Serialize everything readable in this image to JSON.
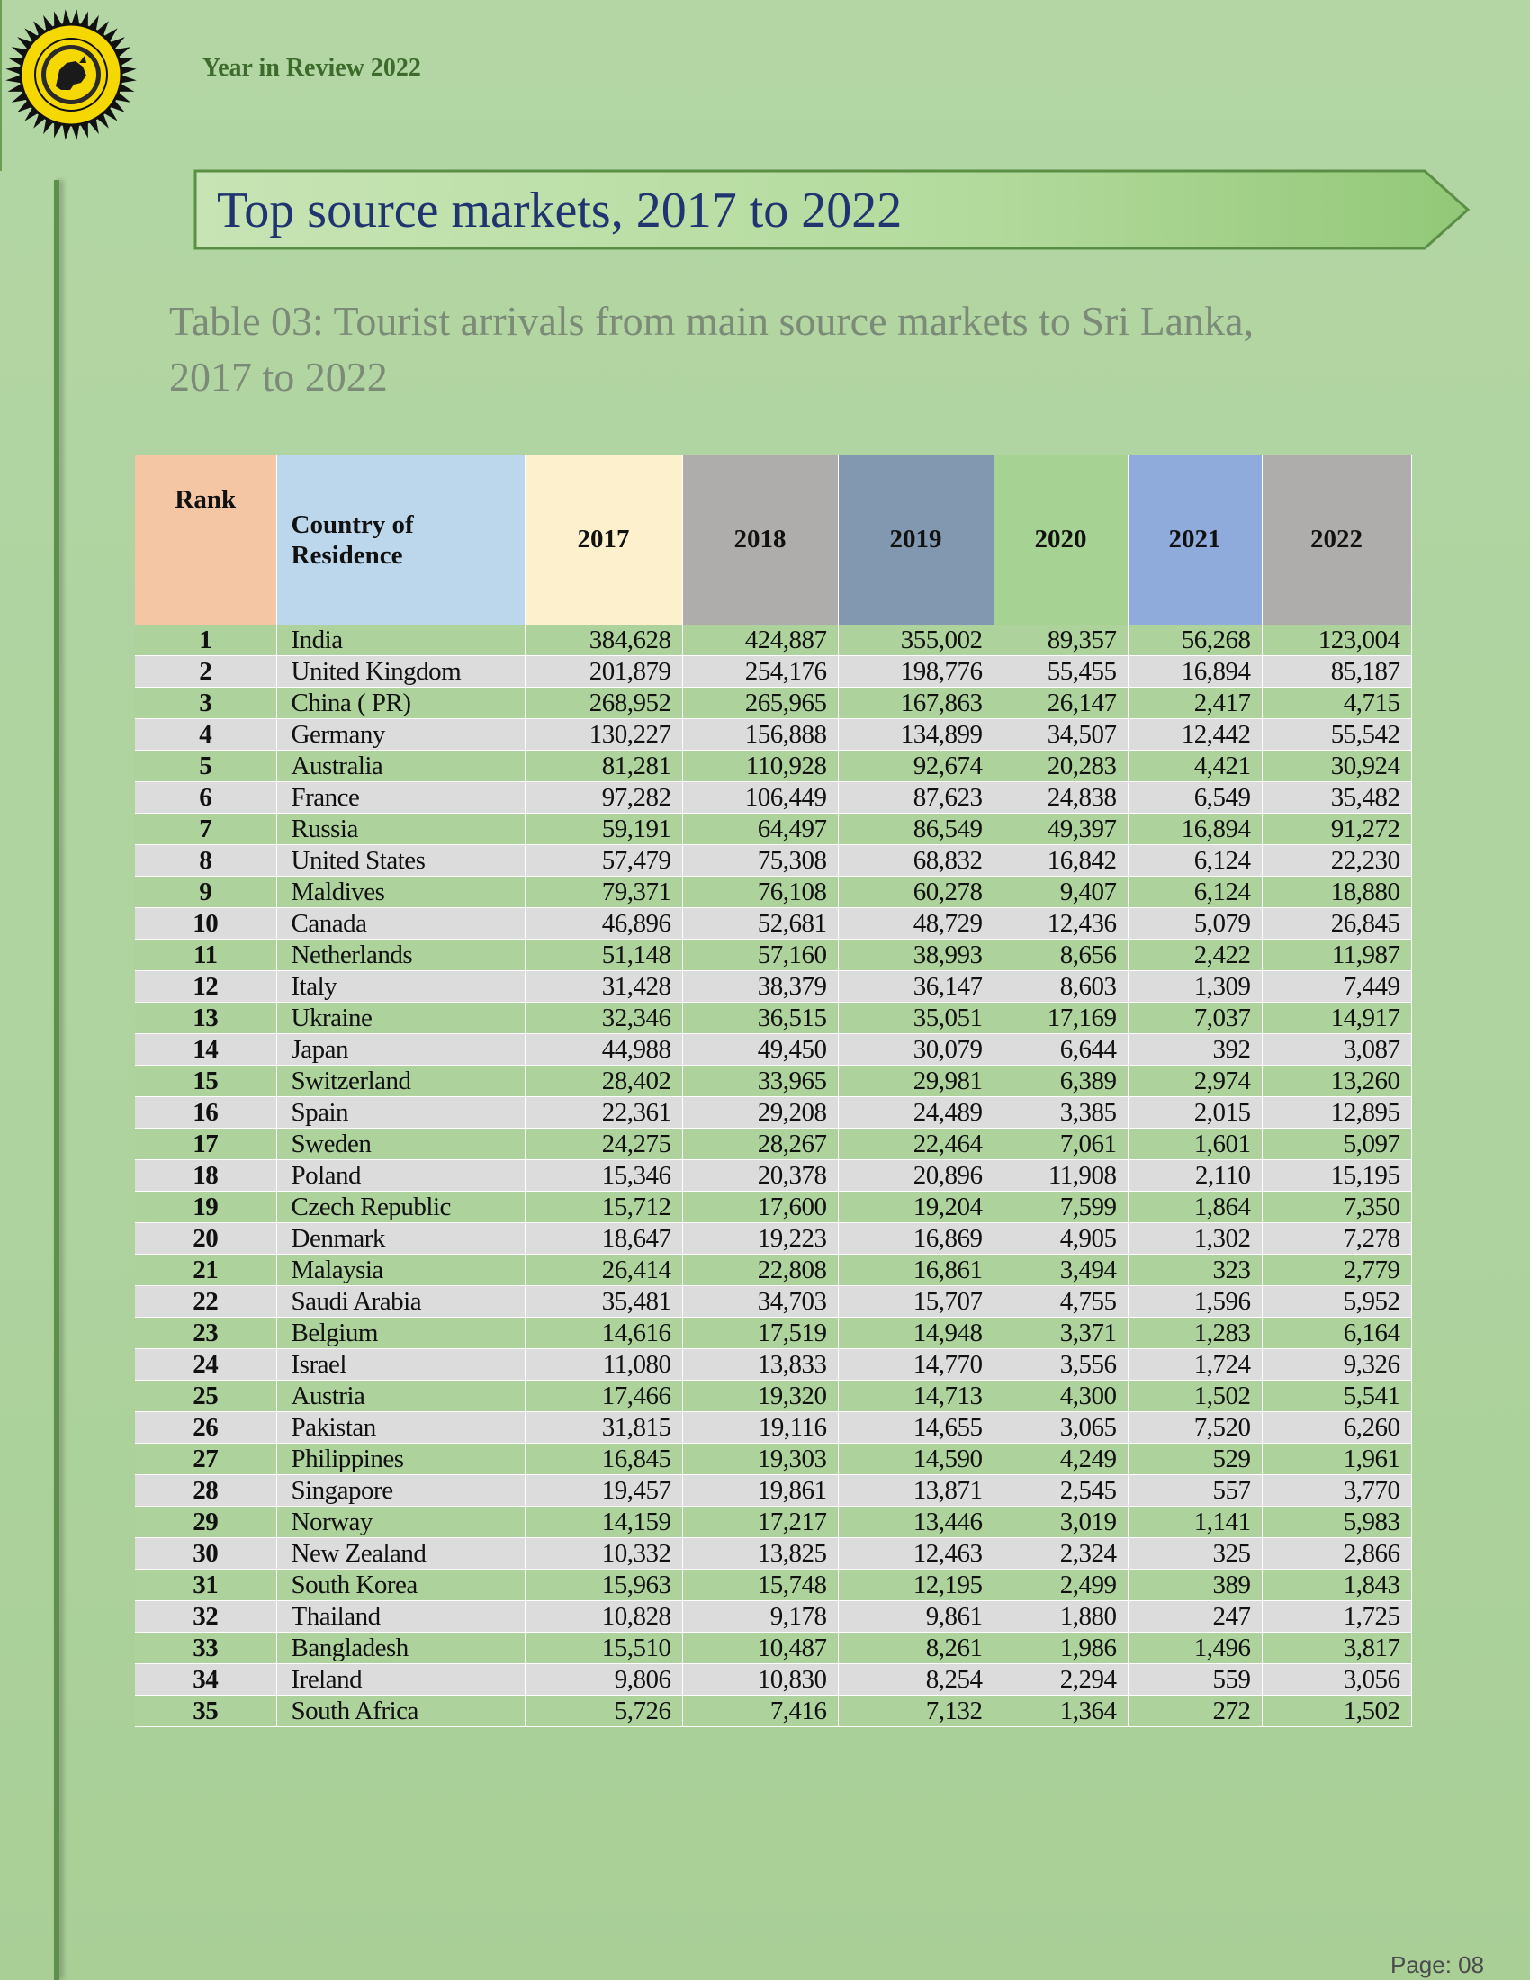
{
  "header": {
    "title": "Year in Review 2022"
  },
  "banner": {
    "title": "Top source markets, 2017 to 2022"
  },
  "caption": "Table 03: Tourist arrivals from main source markets to Sri Lanka, 2017 to 2022",
  "table": {
    "headers": {
      "rank": "Rank",
      "country_line1": "Country of",
      "country_line2": "Residence",
      "years": [
        "2017",
        "2018",
        "2019",
        "2020",
        "2021",
        "2022"
      ]
    },
    "rows": [
      {
        "rank": "1",
        "country": "India",
        "v": [
          "384,628",
          "424,887",
          "355,002",
          "89,357",
          "56,268",
          "123,004"
        ]
      },
      {
        "rank": "2",
        "country": "United Kingdom",
        "v": [
          "201,879",
          "254,176",
          "198,776",
          "55,455",
          "16,894",
          "85,187"
        ]
      },
      {
        "rank": "3",
        "country": "China ( PR)",
        "v": [
          "268,952",
          "265,965",
          "167,863",
          "26,147",
          "2,417",
          "4,715"
        ]
      },
      {
        "rank": "4",
        "country": "Germany",
        "v": [
          "130,227",
          "156,888",
          "134,899",
          "34,507",
          "12,442",
          "55,542"
        ]
      },
      {
        "rank": "5",
        "country": "Australia",
        "v": [
          "81,281",
          "110,928",
          "92,674",
          "20,283",
          "4,421",
          "30,924"
        ]
      },
      {
        "rank": "6",
        "country": "France",
        "v": [
          "97,282",
          "106,449",
          "87,623",
          "24,838",
          "6,549",
          "35,482"
        ]
      },
      {
        "rank": "7",
        "country": "Russia",
        "v": [
          "59,191",
          "64,497",
          "86,549",
          "49,397",
          "16,894",
          "91,272"
        ]
      },
      {
        "rank": "8",
        "country": "United States",
        "v": [
          "57,479",
          "75,308",
          "68,832",
          "16,842",
          "6,124",
          "22,230"
        ]
      },
      {
        "rank": "9",
        "country": "Maldives",
        "v": [
          "79,371",
          "76,108",
          "60,278",
          "9,407",
          "6,124",
          "18,880"
        ]
      },
      {
        "rank": "10",
        "country": "Canada",
        "v": [
          "46,896",
          "52,681",
          "48,729",
          "12,436",
          "5,079",
          "26,845"
        ]
      },
      {
        "rank": "11",
        "country": "Netherlands",
        "v": [
          "51,148",
          "57,160",
          "38,993",
          "8,656",
          "2,422",
          "11,987"
        ]
      },
      {
        "rank": "12",
        "country": "Italy",
        "v": [
          "31,428",
          "38,379",
          "36,147",
          "8,603",
          "1,309",
          "7,449"
        ]
      },
      {
        "rank": "13",
        "country": "Ukraine",
        "v": [
          "32,346",
          "36,515",
          "35,051",
          "17,169",
          "7,037",
          "14,917"
        ]
      },
      {
        "rank": "14",
        "country": "Japan",
        "v": [
          "44,988",
          "49,450",
          "30,079",
          "6,644",
          "392",
          "3,087"
        ]
      },
      {
        "rank": "15",
        "country": "Switzerland",
        "v": [
          "28,402",
          "33,965",
          "29,981",
          "6,389",
          "2,974",
          "13,260"
        ]
      },
      {
        "rank": "16",
        "country": "Spain",
        "v": [
          "22,361",
          "29,208",
          "24,489",
          "3,385",
          "2,015",
          "12,895"
        ]
      },
      {
        "rank": "17",
        "country": "Sweden",
        "v": [
          "24,275",
          "28,267",
          "22,464",
          "7,061",
          "1,601",
          "5,097"
        ]
      },
      {
        "rank": "18",
        "country": "Poland",
        "v": [
          "15,346",
          "20,378",
          "20,896",
          "11,908",
          "2,110",
          "15,195"
        ]
      },
      {
        "rank": "19",
        "country": "Czech Republic",
        "v": [
          "15,712",
          "17,600",
          "19,204",
          "7,599",
          "1,864",
          "7,350"
        ]
      },
      {
        "rank": "20",
        "country": "Denmark",
        "v": [
          "18,647",
          "19,223",
          "16,869",
          "4,905",
          "1,302",
          "7,278"
        ]
      },
      {
        "rank": "21",
        "country": "Malaysia",
        "v": [
          "26,414",
          "22,808",
          "16,861",
          "3,494",
          "323",
          "2,779"
        ]
      },
      {
        "rank": "22",
        "country": "Saudi Arabia",
        "v": [
          "35,481",
          "34,703",
          "15,707",
          "4,755",
          "1,596",
          "5,952"
        ]
      },
      {
        "rank": "23",
        "country": "Belgium",
        "v": [
          "14,616",
          "17,519",
          "14,948",
          "3,371",
          "1,283",
          "6,164"
        ]
      },
      {
        "rank": "24",
        "country": "Israel",
        "v": [
          "11,080",
          "13,833",
          "14,770",
          "3,556",
          "1,724",
          "9,326"
        ]
      },
      {
        "rank": "25",
        "country": "Austria",
        "v": [
          "17,466",
          "19,320",
          "14,713",
          "4,300",
          "1,502",
          "5,541"
        ]
      },
      {
        "rank": "26",
        "country": "Pakistan",
        "v": [
          "31,815",
          "19,116",
          "14,655",
          "3,065",
          "7,520",
          "6,260"
        ]
      },
      {
        "rank": "27",
        "country": "Philippines",
        "v": [
          "16,845",
          "19,303",
          "14,590",
          "4,249",
          "529",
          "1,961"
        ]
      },
      {
        "rank": "28",
        "country": "Singapore",
        "v": [
          "19,457",
          "19,861",
          "13,871",
          "2,545",
          "557",
          "3,770"
        ]
      },
      {
        "rank": "29",
        "country": "Norway",
        "v": [
          "14,159",
          "17,217",
          "13,446",
          "3,019",
          "1,141",
          "5,983"
        ]
      },
      {
        "rank": "30",
        "country": "New Zealand",
        "v": [
          "10,332",
          "13,825",
          "12,463",
          "2,324",
          "325",
          "2,866"
        ]
      },
      {
        "rank": "31",
        "country": "South Korea",
        "v": [
          "15,963",
          "15,748",
          "12,195",
          "2,499",
          "389",
          "1,843"
        ]
      },
      {
        "rank": "32",
        "country": "Thailand",
        "v": [
          "10,828",
          "9,178",
          "9,861",
          "1,880",
          "247",
          "1,725"
        ]
      },
      {
        "rank": "33",
        "country": "Bangladesh",
        "v": [
          "15,510",
          "10,487",
          "8,261",
          "1,986",
          "1,496",
          "3,817"
        ]
      },
      {
        "rank": "34",
        "country": "Ireland",
        "v": [
          "9,806",
          "10,830",
          "8,254",
          "2,294",
          "559",
          "3,056"
        ]
      },
      {
        "rank": "35",
        "country": "South Africa",
        "v": [
          "5,726",
          "7,416",
          "7,132",
          "1,364",
          "272",
          "1,502"
        ]
      }
    ]
  },
  "footer": {
    "page": "Page: 08"
  },
  "colors": {
    "banner_text": "#1f3470",
    "header_text": "#3d6b2c",
    "row_green": "#aed29c",
    "row_grey": "#dcdcdc",
    "logo_yellow": "#f5d800"
  }
}
